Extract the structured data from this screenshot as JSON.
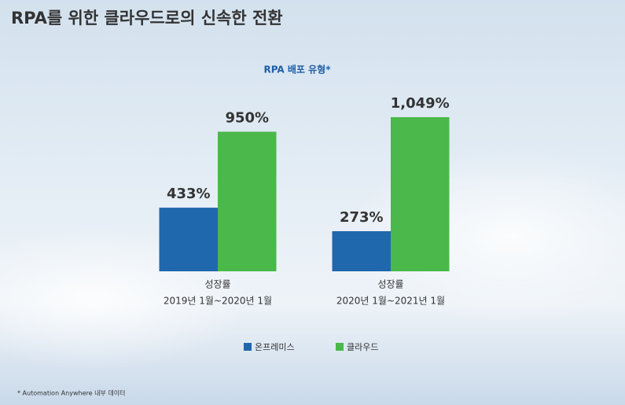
{
  "chart_data": {
    "type": "bar",
    "title": "RPA를 위한 클라우드로의 신속한 전환",
    "subtitle": "RPA 배포 유형*",
    "footnote": "* Automation Anywhere 내부 데이터",
    "categories": [
      [
        "성장률",
        "2019년 1월~2020년 1월"
      ],
      [
        "성장률",
        "2020년 1월~2021년 1월"
      ]
    ],
    "series": [
      {
        "name": "온프레미스",
        "color": "#1f68ad",
        "values": [
          433,
          273
        ],
        "value_labels": [
          "433%",
          "273%"
        ]
      },
      {
        "name": "클라우드",
        "color": "#4ab84a",
        "values": [
          950,
          1049
        ],
        "value_labels": [
          "950%",
          "1,049%"
        ]
      }
    ]
  }
}
